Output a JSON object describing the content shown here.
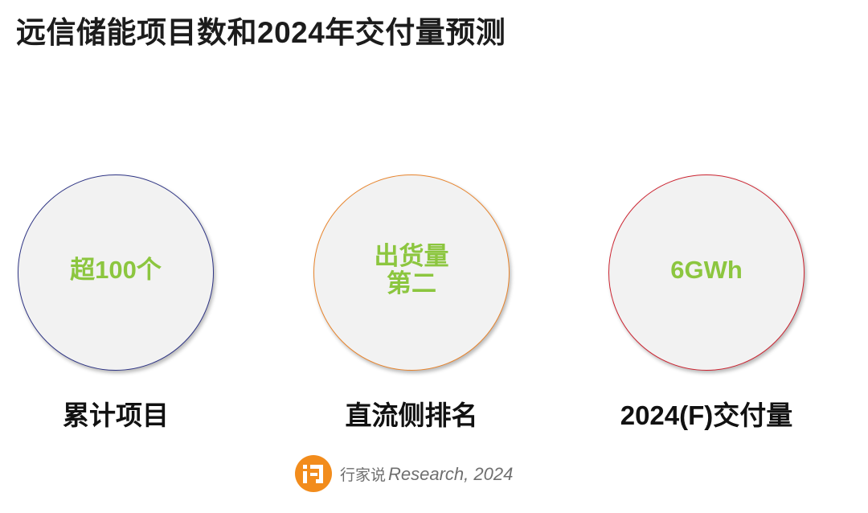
{
  "title": "远信储能项目数和2024年交付量预测",
  "cards": [
    {
      "value_lines": [
        "超100个"
      ],
      "caption": "累计项目",
      "border_color": "#2f3585"
    },
    {
      "value_lines": [
        "出货量",
        "第二"
      ],
      "caption": "直流侧排名",
      "border_color": "#e8842c"
    },
    {
      "value_lines": [
        "6GWh"
      ],
      "caption": "2024(F)交付量",
      "border_color": "#cc2330"
    }
  ],
  "value_color": "#8cc63f",
  "watermark": {
    "logo_icon": "xingjiashuo-logo-icon",
    "cn_text": "行家说",
    "en_text": "Research, 2024",
    "logo_color": "#f28c1c"
  }
}
